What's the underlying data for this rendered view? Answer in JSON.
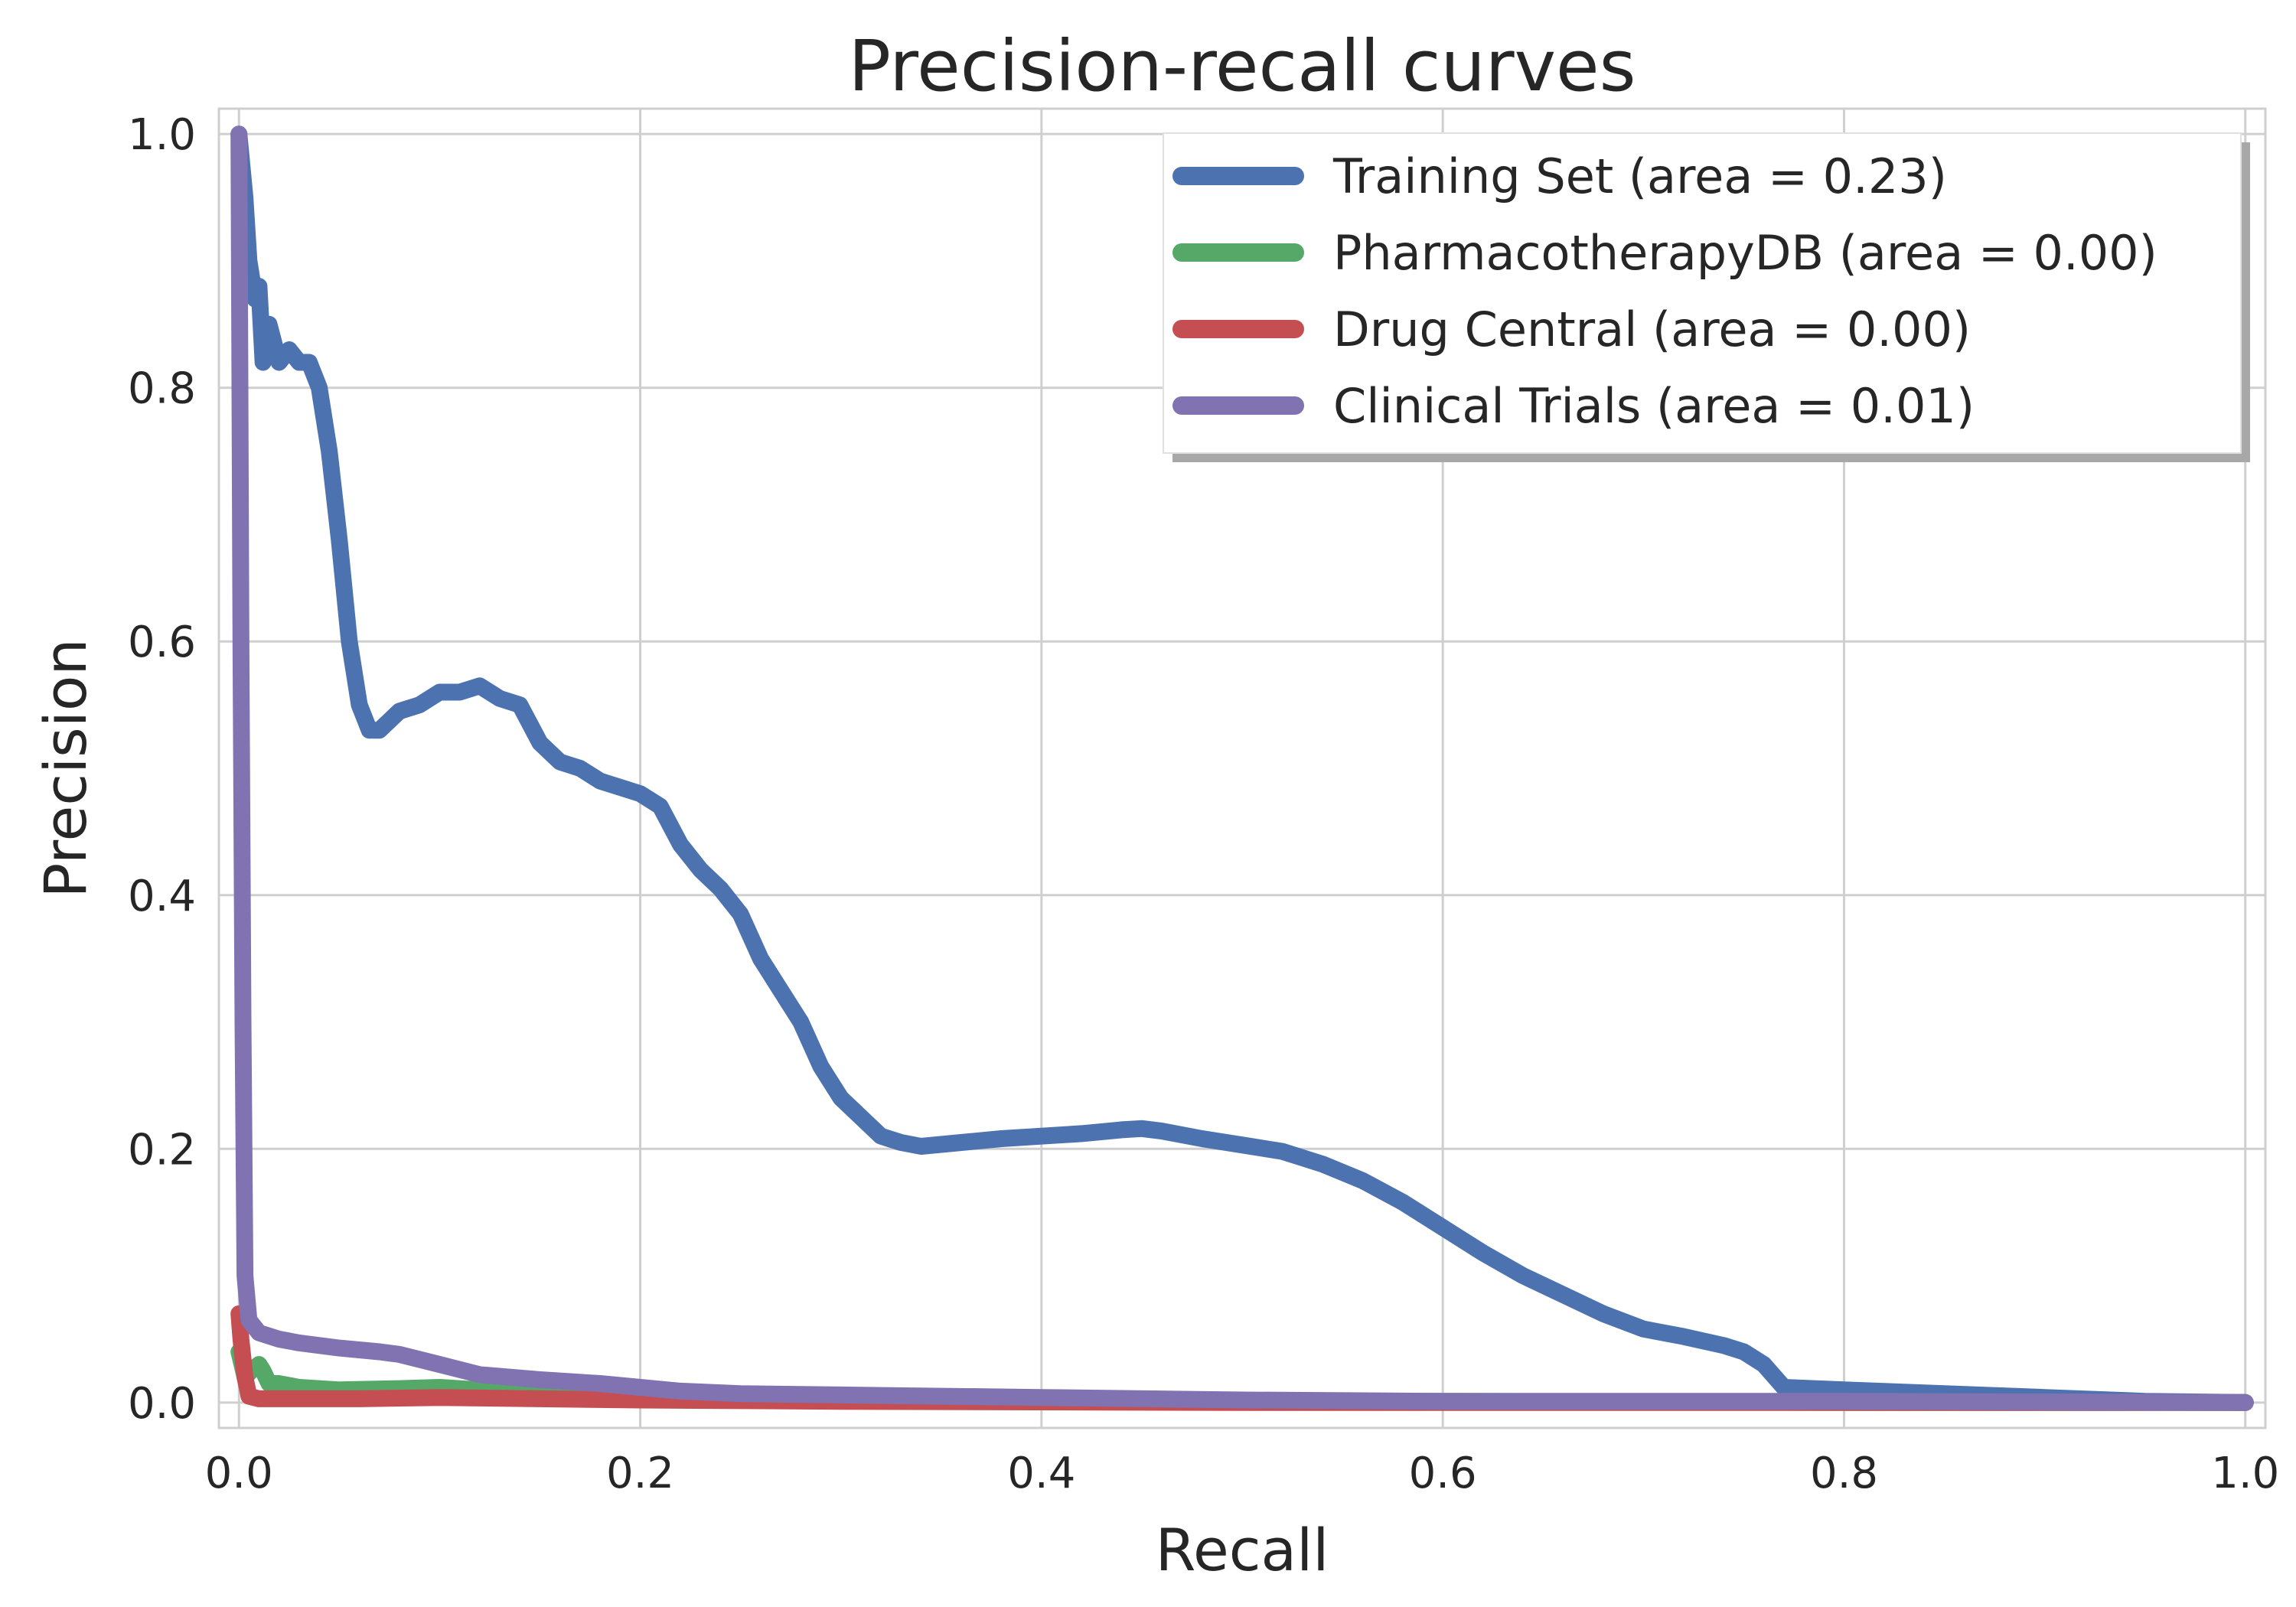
{
  "chart_data": {
    "type": "line",
    "title": "Precision-recall curves",
    "xlabel": "Recall",
    "ylabel": "Precision",
    "xlim": [
      -0.01,
      1.01
    ],
    "ylim": [
      -0.02,
      1.02
    ],
    "xticks": [
      0.0,
      0.2,
      0.4,
      0.6,
      0.8,
      1.0
    ],
    "xtick_labels": [
      "0.0",
      "0.2",
      "0.4",
      "0.6",
      "0.8",
      "1.0"
    ],
    "yticks": [
      0.0,
      0.2,
      0.4,
      0.6,
      0.8,
      1.0
    ],
    "ytick_labels": [
      "0.0",
      "0.2",
      "0.4",
      "0.6",
      "0.8",
      "1.0"
    ],
    "grid": true,
    "legend_position": "top-right",
    "series": [
      {
        "name": "Training Set (area = 0.23)",
        "color": "#4c72b0",
        "x": [
          0.0,
          0.003,
          0.005,
          0.007,
          0.008,
          0.01,
          0.012,
          0.013,
          0.015,
          0.02,
          0.025,
          0.03,
          0.035,
          0.04,
          0.045,
          0.05,
          0.055,
          0.06,
          0.065,
          0.07,
          0.08,
          0.09,
          0.1,
          0.11,
          0.12,
          0.13,
          0.14,
          0.15,
          0.16,
          0.17,
          0.18,
          0.19,
          0.2,
          0.21,
          0.22,
          0.23,
          0.24,
          0.25,
          0.26,
          0.27,
          0.28,
          0.29,
          0.3,
          0.31,
          0.32,
          0.33,
          0.34,
          0.36,
          0.38,
          0.4,
          0.42,
          0.44,
          0.45,
          0.46,
          0.48,
          0.5,
          0.52,
          0.54,
          0.56,
          0.58,
          0.6,
          0.62,
          0.64,
          0.66,
          0.68,
          0.7,
          0.72,
          0.74,
          0.75,
          0.76,
          0.77,
          0.8,
          0.85,
          0.9,
          0.95,
          1.0
        ],
        "y": [
          1.0,
          0.95,
          0.9,
          0.88,
          0.87,
          0.88,
          0.82,
          0.84,
          0.85,
          0.82,
          0.83,
          0.82,
          0.82,
          0.8,
          0.75,
          0.68,
          0.6,
          0.55,
          0.53,
          0.53,
          0.545,
          0.55,
          0.56,
          0.56,
          0.565,
          0.555,
          0.55,
          0.52,
          0.505,
          0.5,
          0.49,
          0.485,
          0.48,
          0.47,
          0.44,
          0.42,
          0.405,
          0.385,
          0.35,
          0.325,
          0.3,
          0.265,
          0.24,
          0.225,
          0.21,
          0.205,
          0.202,
          0.205,
          0.208,
          0.21,
          0.212,
          0.215,
          0.216,
          0.214,
          0.208,
          0.203,
          0.198,
          0.188,
          0.175,
          0.158,
          0.138,
          0.118,
          0.1,
          0.085,
          0.07,
          0.058,
          0.052,
          0.045,
          0.04,
          0.03,
          0.012,
          0.01,
          0.007,
          0.004,
          0.001,
          0.0
        ]
      },
      {
        "name": "PharmacotherapyDB (area = 0.00)",
        "color": "#55a868",
        "x": [
          0.0,
          0.003,
          0.006,
          0.01,
          0.012,
          0.015,
          0.02,
          0.03,
          0.05,
          0.08,
          0.1,
          0.12,
          0.15,
          0.2,
          0.25,
          0.3,
          0.4,
          0.5,
          0.6,
          0.8,
          1.0
        ],
        "y": [
          0.04,
          0.02,
          0.025,
          0.03,
          0.025,
          0.015,
          0.015,
          0.012,
          0.01,
          0.011,
          0.012,
          0.01,
          0.008,
          0.005,
          0.004,
          0.003,
          0.002,
          0.001,
          0.001,
          0.0,
          0.0
        ]
      },
      {
        "name": "Drug Central (area = 0.00)",
        "color": "#c44e52",
        "x": [
          0.0,
          0.001,
          0.003,
          0.005,
          0.01,
          0.03,
          0.06,
          0.1,
          0.15,
          0.2,
          0.3,
          0.5,
          0.7,
          1.0
        ],
        "y": [
          0.07,
          0.05,
          0.02,
          0.005,
          0.003,
          0.003,
          0.003,
          0.004,
          0.003,
          0.002,
          0.001,
          0.0,
          0.0,
          0.0
        ]
      },
      {
        "name": "Clinical Trials (area = 0.01)",
        "color": "#8172b2",
        "x": [
          0.0,
          0.001,
          0.002,
          0.003,
          0.005,
          0.01,
          0.02,
          0.03,
          0.05,
          0.07,
          0.08,
          0.1,
          0.12,
          0.15,
          0.18,
          0.2,
          0.22,
          0.25,
          0.3,
          0.4,
          0.5,
          0.6,
          0.8,
          1.0
        ],
        "y": [
          1.0,
          0.6,
          0.3,
          0.1,
          0.065,
          0.055,
          0.05,
          0.047,
          0.043,
          0.04,
          0.038,
          0.03,
          0.022,
          0.018,
          0.015,
          0.012,
          0.009,
          0.007,
          0.006,
          0.004,
          0.002,
          0.001,
          0.001,
          0.0
        ]
      }
    ]
  }
}
